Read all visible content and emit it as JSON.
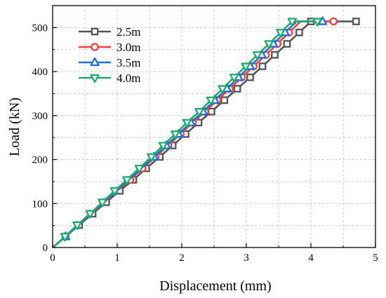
{
  "chart_data": {
    "type": "line",
    "xlabel": "Displacement (mm)",
    "ylabel": "Load (kN)",
    "xlim": [
      0,
      5
    ],
    "ylim": [
      0,
      550
    ],
    "xticks": [
      0,
      1,
      2,
      3,
      4,
      5
    ],
    "yticks": [
      0,
      100,
      200,
      300,
      400,
      500
    ],
    "grid": true,
    "legend_position": "top-left",
    "series": [
      {
        "name": "2.5m",
        "color": "#555555",
        "marker": "square",
        "points": [
          [
            0,
            0
          ],
          [
            0.2,
            25
          ],
          [
            0.41,
            51
          ],
          [
            0.62,
            77
          ],
          [
            0.83,
            103
          ],
          [
            1.04,
            129
          ],
          [
            1.25,
            154
          ],
          [
            1.45,
            180
          ],
          [
            1.66,
            206
          ],
          [
            1.86,
            232
          ],
          [
            2.06,
            258
          ],
          [
            2.26,
            284
          ],
          [
            2.46,
            309
          ],
          [
            2.66,
            335
          ],
          [
            2.86,
            361
          ],
          [
            3.06,
            387
          ],
          [
            3.25,
            412
          ],
          [
            3.44,
            438
          ],
          [
            3.63,
            463
          ],
          [
            3.82,
            489
          ],
          [
            4.0,
            514
          ],
          [
            4.7,
            514
          ]
        ],
        "marked": [
          [
            0.2,
            25
          ],
          [
            0.41,
            51
          ],
          [
            0.62,
            77
          ],
          [
            0.83,
            103
          ],
          [
            1.04,
            129
          ],
          [
            1.25,
            154
          ],
          [
            1.45,
            180
          ],
          [
            1.66,
            206
          ],
          [
            1.86,
            232
          ],
          [
            2.06,
            258
          ],
          [
            2.26,
            284
          ],
          [
            2.46,
            309
          ],
          [
            2.66,
            335
          ],
          [
            2.86,
            361
          ],
          [
            3.06,
            387
          ],
          [
            3.25,
            412
          ],
          [
            3.44,
            438
          ],
          [
            3.63,
            463
          ],
          [
            3.82,
            489
          ],
          [
            4.0,
            514
          ],
          [
            4.7,
            514
          ]
        ]
      },
      {
        "name": "3.0m",
        "color": "#f04040",
        "marker": "circle",
        "points": [
          [
            0,
            0
          ],
          [
            0.2,
            25
          ],
          [
            0.4,
            51
          ],
          [
            0.6,
            77
          ],
          [
            0.8,
            103
          ],
          [
            1.0,
            129
          ],
          [
            1.2,
            154
          ],
          [
            1.39,
            180
          ],
          [
            1.59,
            206
          ],
          [
            1.79,
            232
          ],
          [
            1.98,
            258
          ],
          [
            2.17,
            284
          ],
          [
            2.36,
            309
          ],
          [
            2.55,
            335
          ],
          [
            2.74,
            361
          ],
          [
            2.93,
            387
          ],
          [
            3.11,
            412
          ],
          [
            3.3,
            438
          ],
          [
            3.48,
            463
          ],
          [
            3.66,
            489
          ],
          [
            3.84,
            514
          ],
          [
            4.35,
            514
          ]
        ],
        "marked": [
          [
            1.2,
            154
          ],
          [
            1.39,
            180
          ],
          [
            1.59,
            206
          ],
          [
            1.79,
            232
          ],
          [
            1.98,
            258
          ],
          [
            2.17,
            284
          ],
          [
            2.36,
            309
          ],
          [
            2.55,
            335
          ],
          [
            2.74,
            361
          ],
          [
            2.93,
            387
          ],
          [
            3.11,
            412
          ],
          [
            3.3,
            438
          ],
          [
            3.48,
            463
          ],
          [
            3.66,
            489
          ],
          [
            4.35,
            514
          ]
        ]
      },
      {
        "name": "3.5m",
        "color": "#1f6fd8",
        "marker": "triangle-up",
        "points": [
          [
            0,
            0
          ],
          [
            0.2,
            25
          ],
          [
            0.4,
            51
          ],
          [
            0.59,
            77
          ],
          [
            0.79,
            103
          ],
          [
            0.99,
            129
          ],
          [
            1.18,
            154
          ],
          [
            1.37,
            180
          ],
          [
            1.57,
            206
          ],
          [
            1.76,
            232
          ],
          [
            1.95,
            258
          ],
          [
            2.14,
            284
          ],
          [
            2.33,
            309
          ],
          [
            2.51,
            335
          ],
          [
            2.7,
            361
          ],
          [
            2.88,
            387
          ],
          [
            3.06,
            412
          ],
          [
            3.24,
            438
          ],
          [
            3.42,
            463
          ],
          [
            3.6,
            489
          ],
          [
            3.78,
            514
          ],
          [
            4.18,
            514
          ]
        ],
        "marked": [
          [
            0.2,
            25
          ],
          [
            1.57,
            206
          ],
          [
            1.76,
            232
          ],
          [
            1.95,
            258
          ],
          [
            2.14,
            284
          ],
          [
            2.33,
            309
          ],
          [
            2.51,
            335
          ],
          [
            2.7,
            361
          ],
          [
            2.88,
            387
          ],
          [
            3.06,
            412
          ],
          [
            3.24,
            438
          ],
          [
            3.42,
            463
          ],
          [
            3.6,
            489
          ],
          [
            4.18,
            514
          ]
        ]
      },
      {
        "name": "4.0m",
        "color": "#1faa72",
        "marker": "triangle-down",
        "points": [
          [
            0,
            0
          ],
          [
            0.19,
            25
          ],
          [
            0.38,
            51
          ],
          [
            0.58,
            77
          ],
          [
            0.77,
            103
          ],
          [
            0.96,
            129
          ],
          [
            1.15,
            154
          ],
          [
            1.34,
            180
          ],
          [
            1.53,
            206
          ],
          [
            1.71,
            232
          ],
          [
            1.9,
            258
          ],
          [
            2.08,
            284
          ],
          [
            2.27,
            309
          ],
          [
            2.45,
            335
          ],
          [
            2.63,
            361
          ],
          [
            2.81,
            387
          ],
          [
            2.99,
            412
          ],
          [
            3.17,
            438
          ],
          [
            3.35,
            463
          ],
          [
            3.53,
            489
          ],
          [
            3.71,
            514
          ],
          [
            4.1,
            514
          ]
        ],
        "marked": [
          [
            0.19,
            25
          ],
          [
            0.38,
            51
          ],
          [
            0.58,
            77
          ],
          [
            0.77,
            103
          ],
          [
            0.96,
            129
          ],
          [
            1.15,
            154
          ],
          [
            1.34,
            180
          ],
          [
            1.53,
            206
          ],
          [
            1.71,
            232
          ],
          [
            1.9,
            258
          ],
          [
            2.08,
            284
          ],
          [
            2.27,
            309
          ],
          [
            2.45,
            335
          ],
          [
            2.63,
            361
          ],
          [
            2.81,
            387
          ],
          [
            2.99,
            412
          ],
          [
            3.17,
            438
          ],
          [
            3.35,
            463
          ],
          [
            3.53,
            489
          ],
          [
            3.71,
            514
          ],
          [
            4.1,
            514
          ]
        ]
      }
    ]
  }
}
